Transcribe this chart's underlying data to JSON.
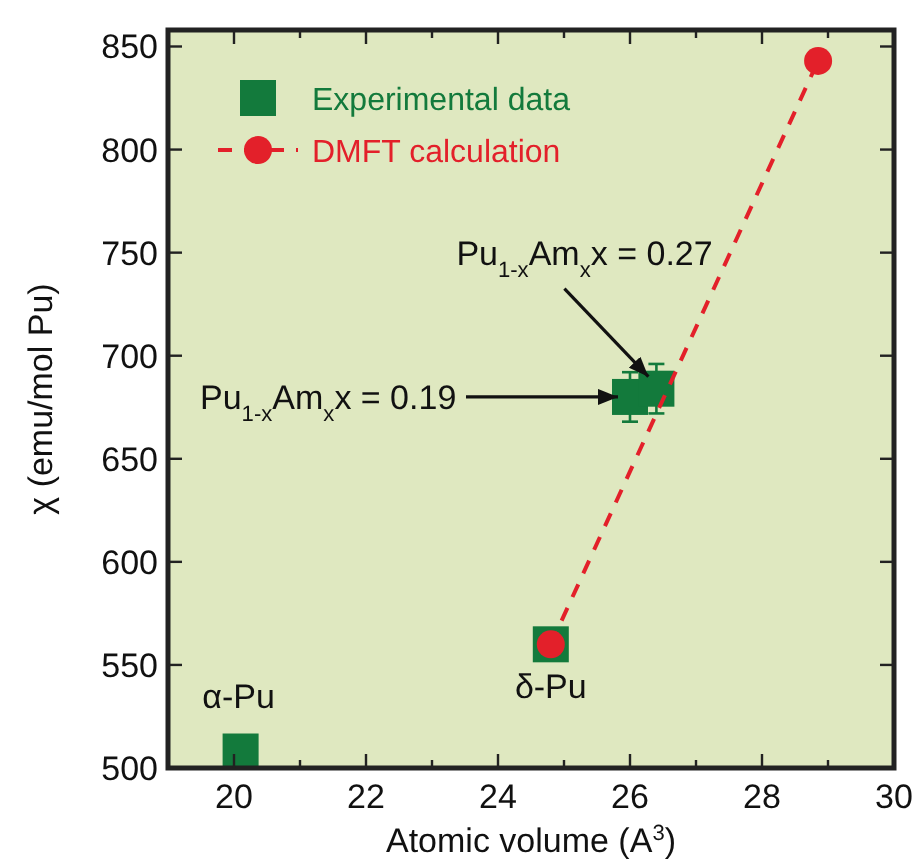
{
  "chart_data": {
    "type": "scatter",
    "xlabel": "Atomic volume (A$^{3}$)",
    "ylabel": "χ (emu/mol Pu)",
    "xlim": [
      19,
      30
    ],
    "xticks": [
      20,
      {
        "value": 21,
        "label": null
      },
      22,
      {
        "value": 23,
        "label": null
      },
      24,
      {
        "value": 25,
        "label": null
      },
      26,
      {
        "value": 27,
        "label": null
      },
      28,
      {
        "value": 29,
        "label": null
      },
      30
    ],
    "ylim": [
      500,
      858
    ],
    "yticks": [
      500,
      550,
      600,
      650,
      700,
      750,
      800,
      850
    ],
    "legend": "top left",
    "grid": false,
    "series": [
      {
        "name": "Experimental data",
        "type": "scatter",
        "marker": "square",
        "color": "#137a3c",
        "x": [
          20.1,
          24.8,
          26.0,
          26.4
        ],
        "values": [
          508,
          560,
          680,
          684
        ],
        "errors": [
          null,
          null,
          12,
          12
        ]
      },
      {
        "name": "DMFT calculation",
        "type": "line",
        "marker": "circle",
        "line_style": "dashed",
        "color": "#e3202a",
        "x": [
          24.8,
          28.85
        ],
        "values": [
          560,
          843
        ]
      }
    ],
    "annotations": [
      {
        "text": "Pu$_{1-x}$Am$_{x}$x = 0.27",
        "x": 26.4,
        "y": 684
      },
      {
        "text": "Pu$_{1-x}$Am$_{x}$x = 0.19",
        "x": 26.0,
        "y": 680
      },
      {
        "text": "δ-Pu",
        "x": 24.8,
        "y": 560
      },
      {
        "text": "α-Pu",
        "x": 20.1,
        "y": 508
      }
    ]
  }
}
